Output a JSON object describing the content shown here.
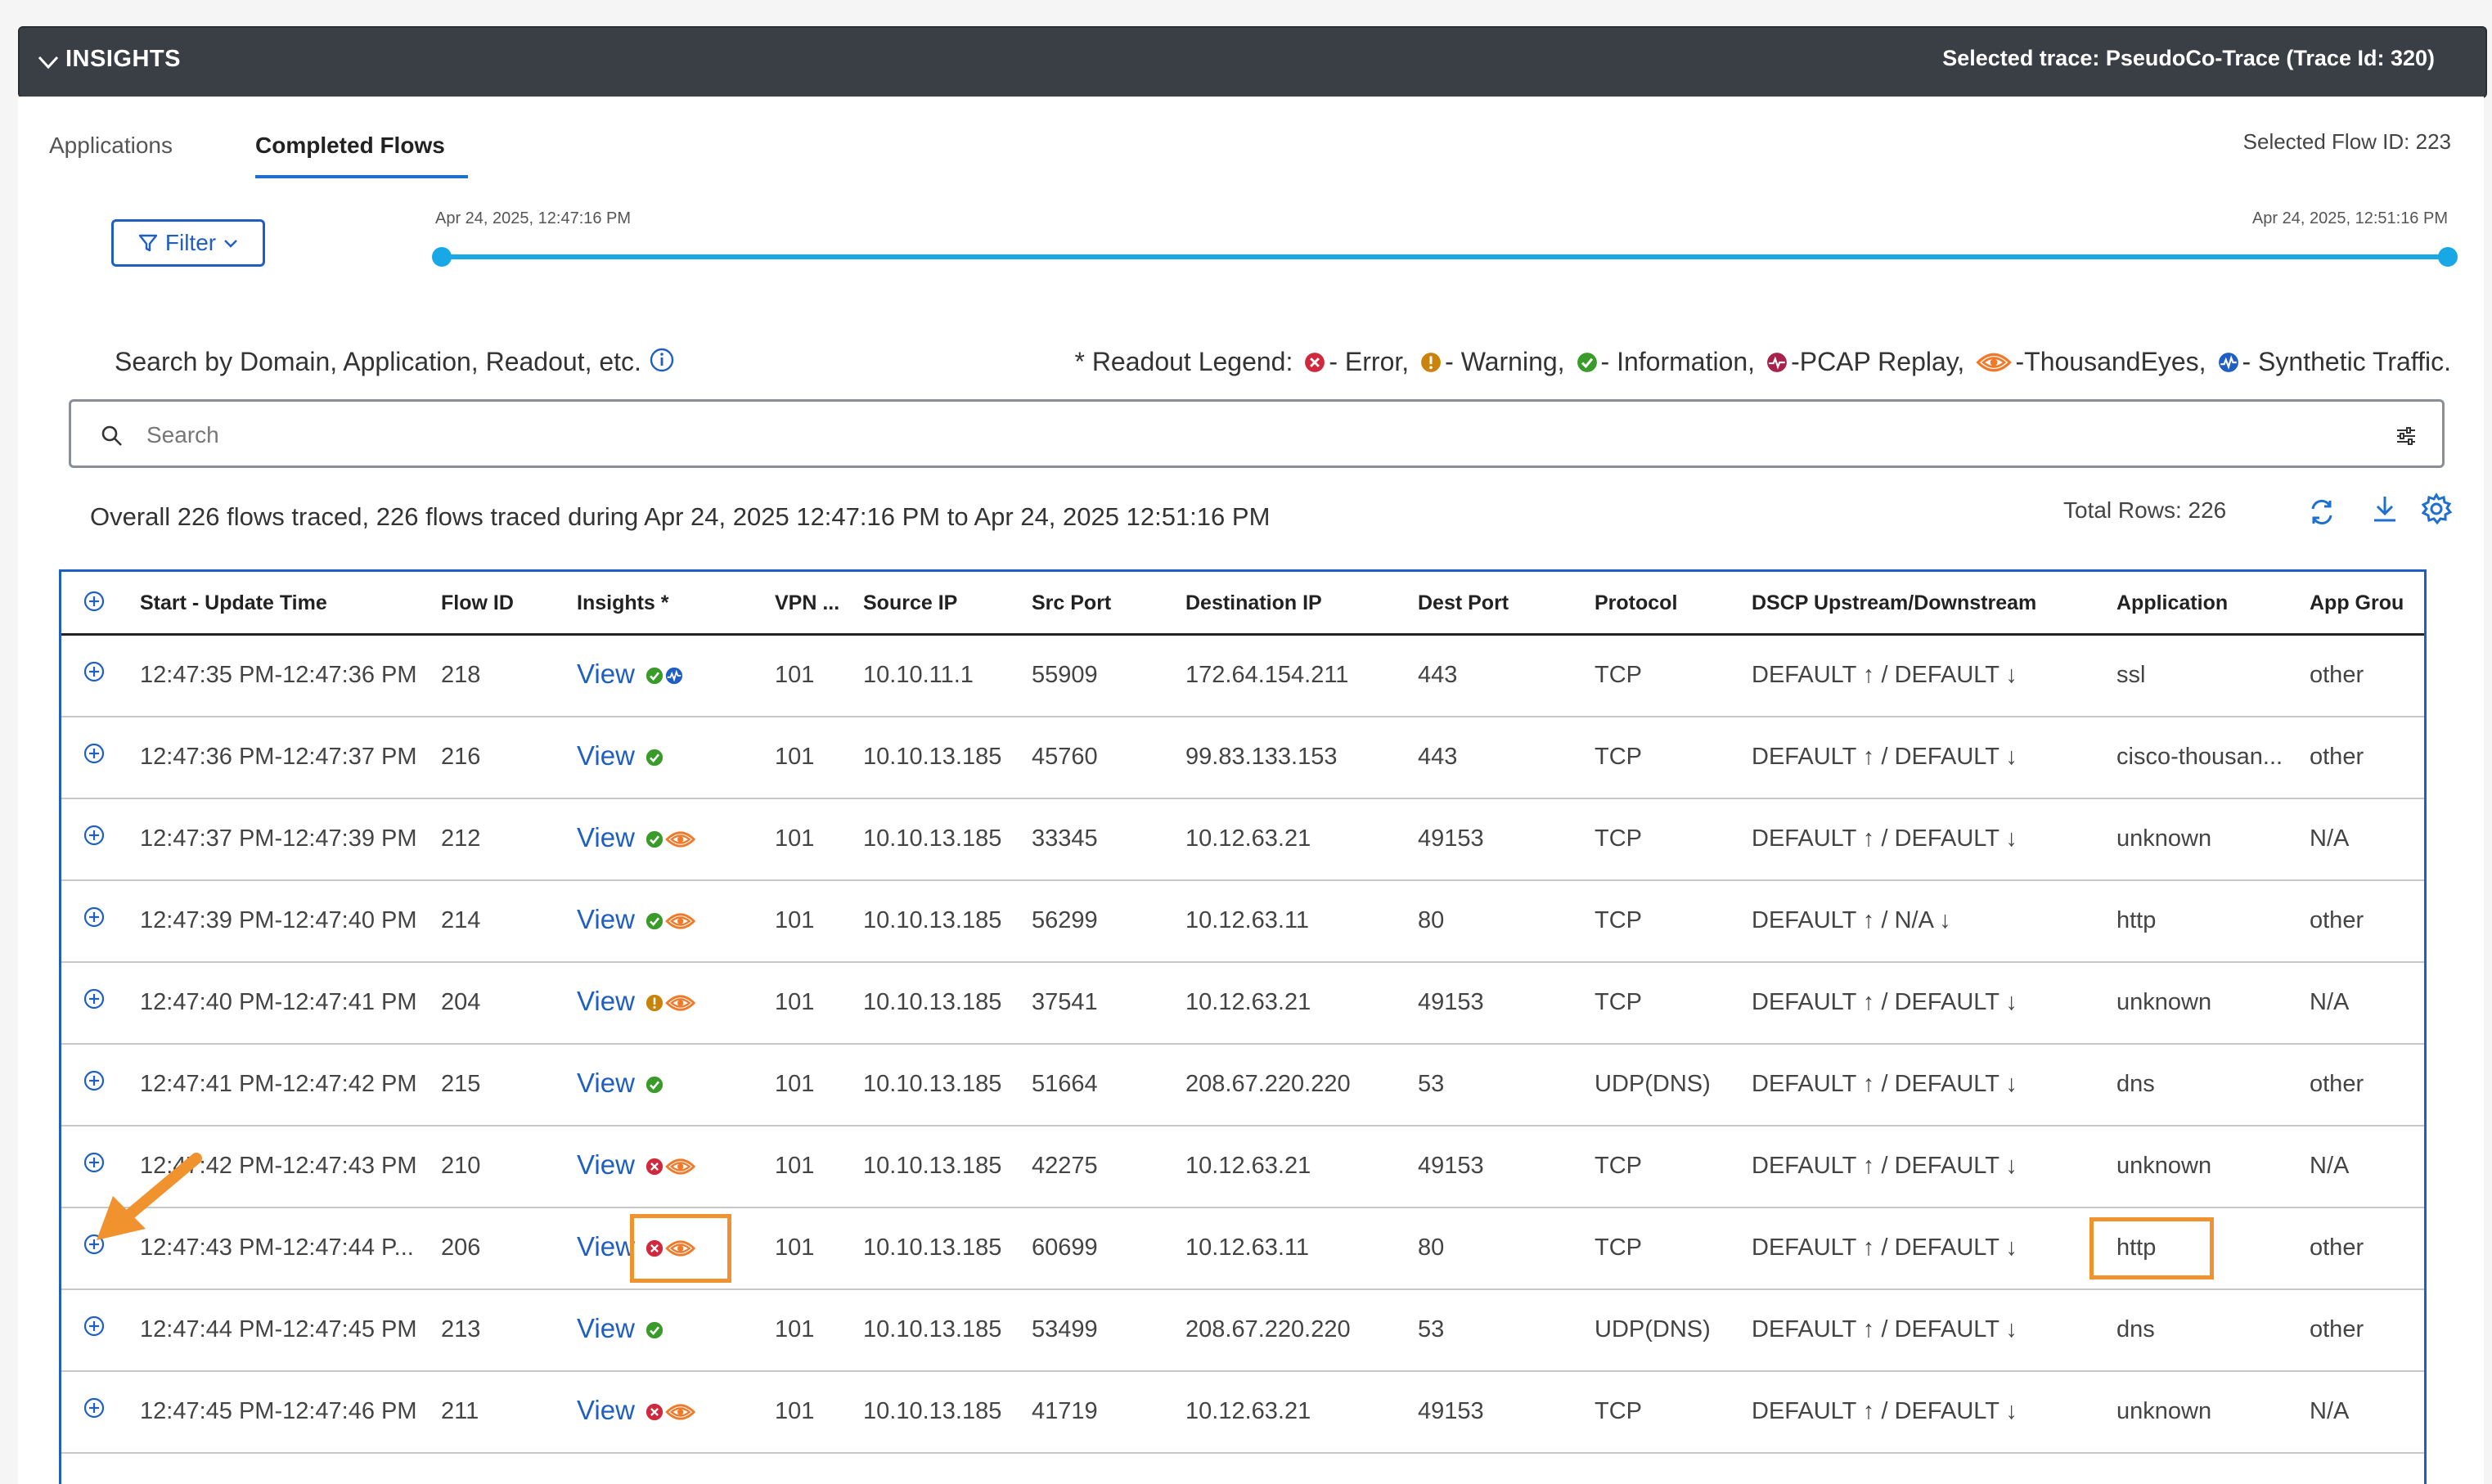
{
  "header": {
    "title": "INSIGHTS",
    "selected_trace": "Selected trace: PseudoCo-Trace (Trace Id: 320)"
  },
  "tabs": [
    {
      "label": "Applications",
      "active": false
    },
    {
      "label": "Completed Flows",
      "active": true
    }
  ],
  "selected_flow": "Selected Flow ID: 223",
  "filter": {
    "label": "Filter"
  },
  "time_range": {
    "start": "Apr 24, 2025, 12:47:16 PM",
    "end": "Apr 24, 2025, 12:51:16 PM"
  },
  "search": {
    "label": "Search by Domain, Application, Readout, etc.",
    "placeholder": "Search",
    "value": ""
  },
  "legend": {
    "prefix": "* Readout Legend:",
    "items": [
      {
        "icon": "error-icon",
        "label": "- Error,"
      },
      {
        "icon": "warning-icon",
        "label": "- Warning,"
      },
      {
        "icon": "information-icon",
        "label": "- Information,"
      },
      {
        "icon": "pcap-replay-icon",
        "label": "-PCAP Replay,"
      },
      {
        "icon": "thousandeyes-icon",
        "label": "-ThousandEyes,"
      },
      {
        "icon": "synthetic-traffic-icon",
        "label": "- Synthetic Traffic."
      }
    ]
  },
  "summary": "Overall 226 flows traced, 226 flows traced during Apr 24, 2025 12:47:16 PM to Apr 24, 2025 12:51:16 PM",
  "total_rows": "Total Rows: 226",
  "colors": {
    "accent": "#1f5fc4",
    "slider": "#18a8e6",
    "error": "#d0283c",
    "warning": "#c9820a",
    "info": "#3a9a2a",
    "pcap": "#a8234c",
    "thousandeyes": "#f07a2a",
    "highlight": "#f0922e"
  },
  "table": {
    "columns": [
      "Start - Update Time",
      "Flow ID",
      "Insights *",
      "VPN ...",
      "Source IP",
      "Src Port",
      "Destination IP",
      "Dest Port",
      "Protocol",
      "DSCP Upstream/Downstream",
      "Application",
      "App Grou"
    ],
    "view_label": "View",
    "rows": [
      {
        "time": "12:47:35 PM-12:47:36 PM",
        "flow_id": "218",
        "insights": [
          "information-icon",
          "synthetic-traffic-icon"
        ],
        "vpn": "101",
        "src_ip": "10.10.11.1",
        "src_port": "55909",
        "dst_ip": "172.64.154.211",
        "dst_port": "443",
        "protocol": "TCP",
        "dscp": "DEFAULT ↑ / DEFAULT ↓",
        "application": "ssl",
        "app_group": "other"
      },
      {
        "time": "12:47:36 PM-12:47:37 PM",
        "flow_id": "216",
        "insights": [
          "information-icon"
        ],
        "vpn": "101",
        "src_ip": "10.10.13.185",
        "src_port": "45760",
        "dst_ip": "99.83.133.153",
        "dst_port": "443",
        "protocol": "TCP",
        "dscp": "DEFAULT ↑ / DEFAULT ↓",
        "application": "cisco-thousan...",
        "app_group": "other"
      },
      {
        "time": "12:47:37 PM-12:47:39 PM",
        "flow_id": "212",
        "insights": [
          "information-icon",
          "thousandeyes-icon"
        ],
        "vpn": "101",
        "src_ip": "10.10.13.185",
        "src_port": "33345",
        "dst_ip": "10.12.63.21",
        "dst_port": "49153",
        "protocol": "TCP",
        "dscp": "DEFAULT ↑ / DEFAULT ↓",
        "application": "unknown",
        "app_group": "N/A"
      },
      {
        "time": "12:47:39 PM-12:47:40 PM",
        "flow_id": "214",
        "insights": [
          "information-icon",
          "thousandeyes-icon"
        ],
        "vpn": "101",
        "src_ip": "10.10.13.185",
        "src_port": "56299",
        "dst_ip": "10.12.63.11",
        "dst_port": "80",
        "protocol": "TCP",
        "dscp": "DEFAULT ↑ / N/A ↓",
        "application": "http",
        "app_group": "other"
      },
      {
        "time": "12:47:40 PM-12:47:41 PM",
        "flow_id": "204",
        "insights": [
          "warning-icon",
          "thousandeyes-icon"
        ],
        "vpn": "101",
        "src_ip": "10.10.13.185",
        "src_port": "37541",
        "dst_ip": "10.12.63.21",
        "dst_port": "49153",
        "protocol": "TCP",
        "dscp": "DEFAULT ↑ / DEFAULT ↓",
        "application": "unknown",
        "app_group": "N/A"
      },
      {
        "time": "12:47:41 PM-12:47:42 PM",
        "flow_id": "215",
        "insights": [
          "information-icon"
        ],
        "vpn": "101",
        "src_ip": "10.10.13.185",
        "src_port": "51664",
        "dst_ip": "208.67.220.220",
        "dst_port": "53",
        "protocol": "UDP(DNS)",
        "dscp": "DEFAULT ↑ / DEFAULT ↓",
        "application": "dns",
        "app_group": "other"
      },
      {
        "time": "12:47:42 PM-12:47:43 PM",
        "flow_id": "210",
        "insights": [
          "error-icon",
          "thousandeyes-icon"
        ],
        "vpn": "101",
        "src_ip": "10.10.13.185",
        "src_port": "42275",
        "dst_ip": "10.12.63.21",
        "dst_port": "49153",
        "protocol": "TCP",
        "dscp": "DEFAULT ↑ / DEFAULT ↓",
        "application": "unknown",
        "app_group": "N/A"
      },
      {
        "time": "12:47:43 PM-12:47:44 P...",
        "flow_id": "206",
        "insights": [
          "error-icon",
          "thousandeyes-icon"
        ],
        "vpn": "101",
        "src_ip": "10.10.13.185",
        "src_port": "60699",
        "dst_ip": "10.12.63.11",
        "dst_port": "80",
        "protocol": "TCP",
        "dscp": "DEFAULT ↑ / DEFAULT ↓",
        "application": "http",
        "app_group": "other"
      },
      {
        "time": "12:47:44 PM-12:47:45 PM",
        "flow_id": "213",
        "insights": [
          "information-icon"
        ],
        "vpn": "101",
        "src_ip": "10.10.13.185",
        "src_port": "53499",
        "dst_ip": "208.67.220.220",
        "dst_port": "53",
        "protocol": "UDP(DNS)",
        "dscp": "DEFAULT ↑ / DEFAULT ↓",
        "application": "dns",
        "app_group": "other"
      },
      {
        "time": "12:47:45 PM-12:47:46 PM",
        "flow_id": "211",
        "insights": [
          "error-icon",
          "thousandeyes-icon"
        ],
        "vpn": "101",
        "src_ip": "10.10.13.185",
        "src_port": "41719",
        "dst_ip": "10.12.63.21",
        "dst_port": "49153",
        "protocol": "TCP",
        "dscp": "DEFAULT ↑ / DEFAULT ↓",
        "application": "unknown",
        "app_group": "N/A"
      }
    ]
  }
}
